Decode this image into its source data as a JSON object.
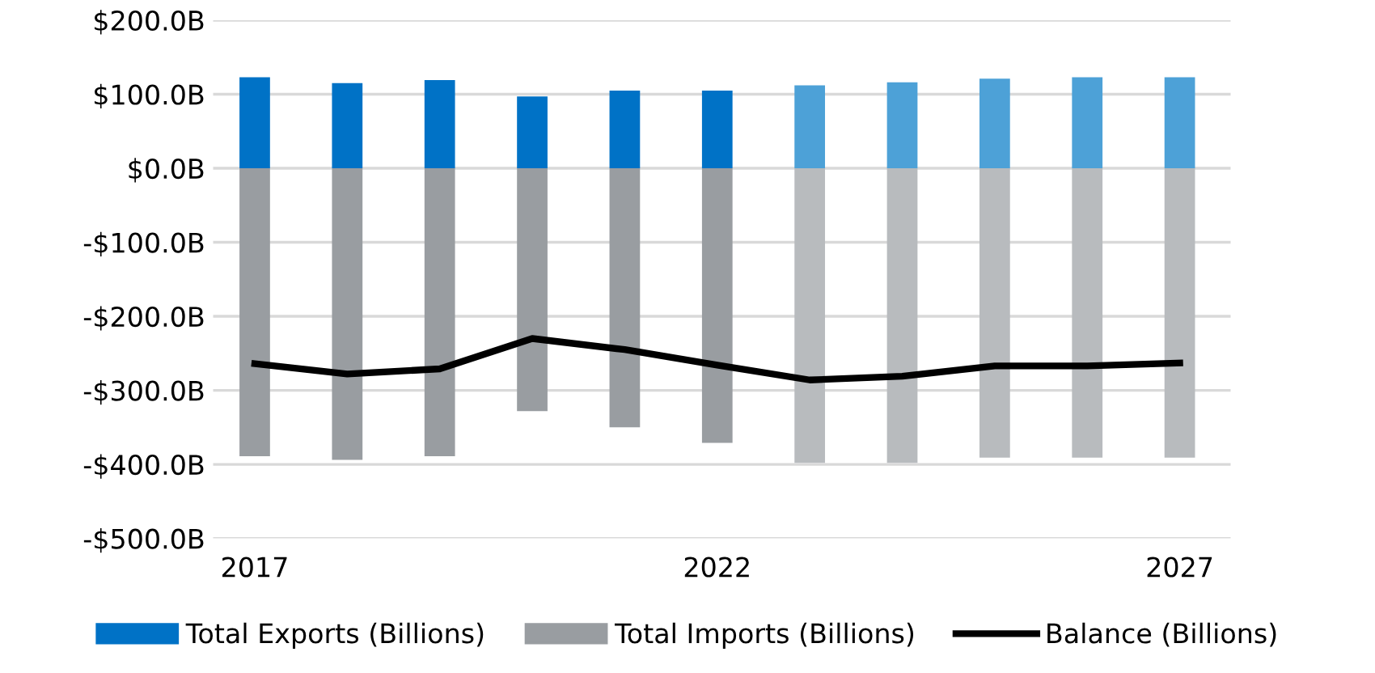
{
  "chart_data": {
    "type": "bar",
    "stacked": true,
    "categories": [
      "2017",
      null,
      null,
      null,
      null,
      "2022",
      null,
      null,
      null,
      null,
      "2027"
    ],
    "series": [
      {
        "name": "Total Exports (Billions)",
        "color": "#0072c6",
        "colors": [
          "#0072c6",
          "#0072c6",
          "#0072c6",
          "#0072c6",
          "#0072c6",
          "#0072c6",
          "#4da1d7",
          "#4da1d7",
          "#4da1d7",
          "#4da1d7",
          "#4da1d7"
        ],
        "values": [
          123,
          115,
          119,
          97,
          105,
          105,
          112,
          116,
          121,
          123,
          123
        ]
      },
      {
        "name": "Total Imports (Billions)",
        "color": "#999da1",
        "colors": [
          "#999da1",
          "#999da1",
          "#999da1",
          "#999da1",
          "#999da1",
          "#999da1",
          "#b8bbbe",
          "#b8bbbe",
          "#b8bbbe",
          "#b8bbbe",
          "#b8bbbe"
        ],
        "values": [
          -389,
          -394,
          -389,
          -328,
          -350,
          -371,
          -398,
          -398,
          -391,
          -391,
          -391
        ]
      },
      {
        "name": "Balance (Billions)",
        "type": "line",
        "color": "#000000",
        "values": [
          -264,
          -278,
          -271,
          -230,
          -245,
          -266,
          -286,
          -281,
          -267,
          -267,
          -263
        ]
      }
    ],
    "ylim": [
      -500,
      200
    ],
    "yticks": [
      {
        "value": -500,
        "label": "-$500.0B"
      },
      {
        "value": -400,
        "label": "-$400.0B"
      },
      {
        "value": -300,
        "label": "-$300.0B"
      },
      {
        "value": -200,
        "label": "-$200.0B"
      },
      {
        "value": -100,
        "label": "-$100.0B"
      },
      {
        "value": 0,
        "label": "$0.0B"
      },
      {
        "value": 100,
        "label": "$100.0B"
      },
      {
        "value": 200,
        "label": "$200.0B"
      }
    ],
    "grid": "y",
    "legend": "bottom",
    "marker": "none",
    "line_style": "solid"
  }
}
